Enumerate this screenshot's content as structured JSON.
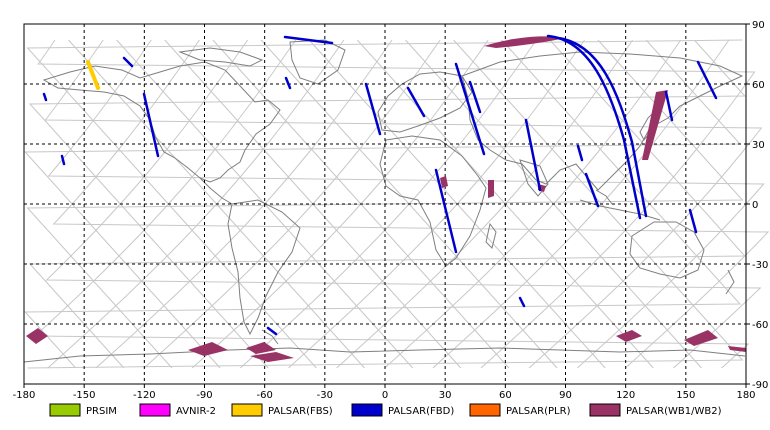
{
  "map": {
    "lon_ticks": [
      "-180",
      "-150",
      "-120",
      "-90",
      "-60",
      "-30",
      "0",
      "30",
      "60",
      "90",
      "120",
      "150",
      "180"
    ],
    "lat_ticks": [
      "90",
      "60",
      "30",
      "0",
      "-30",
      "-60",
      "-90"
    ],
    "lon_range": [
      -180,
      180
    ],
    "lat_range": [
      -90,
      90
    ]
  },
  "legend": [
    {
      "label": "PRSIM",
      "color": "#99cc00"
    },
    {
      "label": "AVNIR-2",
      "color": "#ff00ff"
    },
    {
      "label": "PALSAR(FBS)",
      "color": "#ffcc00"
    },
    {
      "label": "PALSAR(FBD)",
      "color": "#0000cc"
    },
    {
      "label": "PALSAR(PLR)",
      "color": "#ff6600"
    },
    {
      "label": "PALSAR(WB1/WB2)",
      "color": "#993366"
    }
  ],
  "colors": {
    "grid": "#000000",
    "orbit": "#c0c0c0",
    "coast": "#808080",
    "fbd": "#0000cc",
    "fbs": "#ffcc00",
    "wb": "#993366"
  }
}
